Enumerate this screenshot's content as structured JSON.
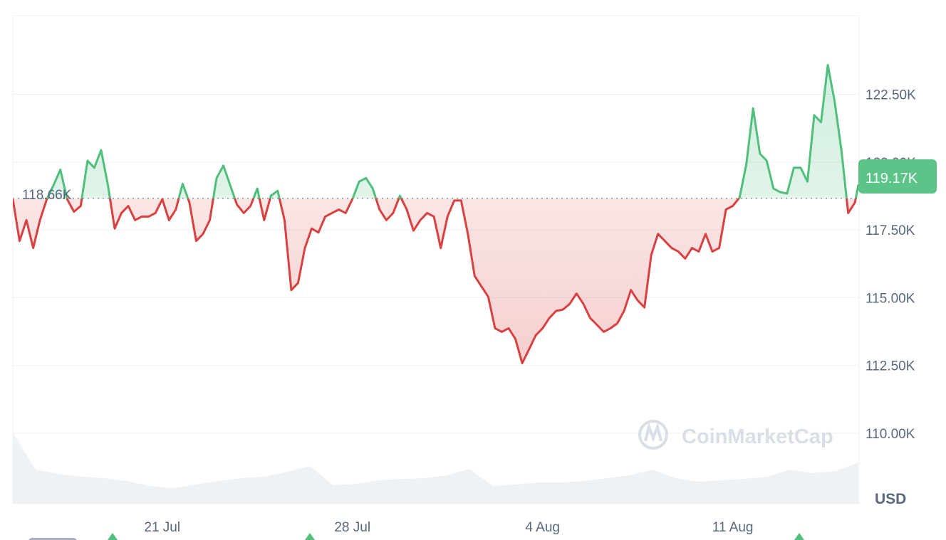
{
  "chart_data": {
    "type": "area",
    "currency_label": "USD",
    "watermark": "CoinMarketCap",
    "baseline": {
      "value": 118.66,
      "label": "118.66K"
    },
    "current": {
      "value": 119.17,
      "label": "119.17K"
    },
    "y_ticks": [
      {
        "v": 110,
        "label": "110.00K"
      },
      {
        "v": 112.5,
        "label": "112.50K"
      },
      {
        "v": 115,
        "label": "115.00K"
      },
      {
        "v": 117.5,
        "label": "117.50K"
      },
      {
        "v": 120,
        "label": "120.00K"
      },
      {
        "v": 122.5,
        "label": "122.50K"
      }
    ],
    "x_ticks": [
      {
        "t": "21 Jul 00:00",
        "label": "21 Jul"
      },
      {
        "t": "28 Jul 00:00",
        "label": "28 Jul"
      },
      {
        "t": "4 Aug 00:00",
        "label": "4 Aug"
      },
      {
        "t": "11 Aug 00:00",
        "label": "11 Aug"
      }
    ],
    "x_range": [
      "15 Jul 12:00",
      "15 Aug 15:00"
    ],
    "ylim": [
      107.4,
      125.4
    ],
    "grid": true,
    "colors": {
      "up": "#4fbf7b",
      "down": "#d94040",
      "up_fill": "#5cc489",
      "grid": "#eef0f3",
      "text": "#58667e",
      "volume": "#eff2f5",
      "badge": "#5cc489"
    },
    "price": [
      [
        "15 Jul 12:00",
        118.63
      ],
      [
        "15 Jul 18:00",
        117.09
      ],
      [
        "16 Jul 00:00",
        117.86
      ],
      [
        "16 Jul 06:00",
        116.83
      ],
      [
        "16 Jul 12:00",
        117.86
      ],
      [
        "16 Jul 18:00",
        118.63
      ],
      [
        "17 Jul 00:00",
        119.15
      ],
      [
        "17 Jul 06:00",
        119.72
      ],
      [
        "17 Jul 12:00",
        118.63
      ],
      [
        "17 Jul 18:00",
        118.17
      ],
      [
        "18 Jul 00:00",
        118.38
      ],
      [
        "18 Jul 06:00",
        120.05
      ],
      [
        "18 Jul 12:00",
        119.79
      ],
      [
        "18 Jul 18:00",
        120.44
      ],
      [
        "19 Jul 00:00",
        119.15
      ],
      [
        "19 Jul 06:00",
        117.55
      ],
      [
        "19 Jul 12:00",
        118.12
      ],
      [
        "19 Jul 18:00",
        118.38
      ],
      [
        "20 Jul 00:00",
        117.86
      ],
      [
        "20 Jul 06:00",
        117.99
      ],
      [
        "20 Jul 12:00",
        117.99
      ],
      [
        "20 Jul 18:00",
        118.12
      ],
      [
        "21 Jul 00:00",
        118.63
      ],
      [
        "21 Jul 06:00",
        117.86
      ],
      [
        "21 Jul 12:00",
        118.25
      ],
      [
        "21 Jul 18:00",
        119.2
      ],
      [
        "22 Jul 00:00",
        118.51
      ],
      [
        "22 Jul 06:00",
        117.09
      ],
      [
        "22 Jul 12:00",
        117.35
      ],
      [
        "22 Jul 18:00",
        117.86
      ],
      [
        "23 Jul 00:00",
        119.41
      ],
      [
        "23 Jul 06:00",
        119.87
      ],
      [
        "23 Jul 12:00",
        119.15
      ],
      [
        "23 Jul 18:00",
        118.43
      ],
      [
        "24 Jul 00:00",
        118.12
      ],
      [
        "24 Jul 06:00",
        118.38
      ],
      [
        "24 Jul 12:00",
        119.02
      ],
      [
        "24 Jul 18:00",
        117.86
      ],
      [
        "25 Jul 00:00",
        118.76
      ],
      [
        "25 Jul 06:00",
        118.94
      ],
      [
        "25 Jul 12:00",
        117.86
      ],
      [
        "25 Jul 18:00",
        115.28
      ],
      [
        "26 Jul 00:00",
        115.54
      ],
      [
        "26 Jul 06:00",
        116.83
      ],
      [
        "26 Jul 12:00",
        117.55
      ],
      [
        "26 Jul 18:00",
        117.4
      ],
      [
        "27 Jul 00:00",
        117.99
      ],
      [
        "27 Jul 06:00",
        118.12
      ],
      [
        "27 Jul 12:00",
        118.25
      ],
      [
        "27 Jul 18:00",
        118.12
      ],
      [
        "28 Jul 00:00",
        118.63
      ],
      [
        "28 Jul 06:00",
        119.28
      ],
      [
        "28 Jul 12:00",
        119.41
      ],
      [
        "28 Jul 18:00",
        119.02
      ],
      [
        "29 Jul 00:00",
        118.25
      ],
      [
        "29 Jul 06:00",
        117.86
      ],
      [
        "29 Jul 12:00",
        118.12
      ],
      [
        "29 Jul 18:00",
        118.76
      ],
      [
        "30 Jul 00:00",
        118.25
      ],
      [
        "30 Jul 06:00",
        117.47
      ],
      [
        "30 Jul 12:00",
        117.86
      ],
      [
        "30 Jul 18:00",
        118.12
      ],
      [
        "31 Jul 00:00",
        117.99
      ],
      [
        "31 Jul 06:00",
        116.83
      ],
      [
        "31 Jul 12:00",
        117.99
      ],
      [
        "31 Jul 18:00",
        118.58
      ],
      [
        "1 Aug 00:00",
        118.58
      ],
      [
        "1 Aug 06:00",
        117.35
      ],
      [
        "1 Aug 12:00",
        115.8
      ],
      [
        "1 Aug 18:00",
        115.41
      ],
      [
        "2 Aug 00:00",
        115.03
      ],
      [
        "2 Aug 06:00",
        113.87
      ],
      [
        "2 Aug 12:00",
        113.74
      ],
      [
        "2 Aug 18:00",
        113.87
      ],
      [
        "3 Aug 00:00",
        113.48
      ],
      [
        "3 Aug 06:00",
        112.58
      ],
      [
        "3 Aug 12:00",
        113.09
      ],
      [
        "3 Aug 18:00",
        113.61
      ],
      [
        "4 Aug 00:00",
        113.87
      ],
      [
        "4 Aug 06:00",
        114.25
      ],
      [
        "4 Aug 12:00",
        114.51
      ],
      [
        "4 Aug 18:00",
        114.56
      ],
      [
        "5 Aug 00:00",
        114.77
      ],
      [
        "5 Aug 06:00",
        115.15
      ],
      [
        "5 Aug 12:00",
        114.77
      ],
      [
        "5 Aug 18:00",
        114.25
      ],
      [
        "6 Aug 00:00",
        114.0
      ],
      [
        "6 Aug 06:00",
        113.74
      ],
      [
        "6 Aug 12:00",
        113.87
      ],
      [
        "6 Aug 18:00",
        114.05
      ],
      [
        "7 Aug 00:00",
        114.51
      ],
      [
        "7 Aug 06:00",
        115.28
      ],
      [
        "7 Aug 12:00",
        114.9
      ],
      [
        "7 Aug 18:00",
        114.64
      ],
      [
        "8 Aug 00:00",
        116.57
      ],
      [
        "8 Aug 06:00",
        117.35
      ],
      [
        "8 Aug 12:00",
        117.09
      ],
      [
        "8 Aug 18:00",
        116.83
      ],
      [
        "9 Aug 00:00",
        116.7
      ],
      [
        "9 Aug 06:00",
        116.44
      ],
      [
        "9 Aug 12:00",
        116.83
      ],
      [
        "9 Aug 18:00",
        116.7
      ],
      [
        "10 Aug 00:00",
        117.35
      ],
      [
        "10 Aug 06:00",
        116.7
      ],
      [
        "10 Aug 12:00",
        116.83
      ],
      [
        "10 Aug 18:00",
        118.25
      ],
      [
        "11 Aug 00:00",
        118.38
      ],
      [
        "11 Aug 06:00",
        118.69
      ],
      [
        "11 Aug 12:00",
        119.92
      ],
      [
        "11 Aug 18:00",
        121.98
      ],
      [
        "12 Aug 00:00",
        120.31
      ],
      [
        "12 Aug 06:00",
        120.05
      ],
      [
        "12 Aug 12:00",
        119.02
      ],
      [
        "12 Aug 18:00",
        118.89
      ],
      [
        "13 Aug 00:00",
        118.84
      ],
      [
        "13 Aug 06:00",
        119.79
      ],
      [
        "13 Aug 12:00",
        119.79
      ],
      [
        "13 Aug 18:00",
        119.28
      ],
      [
        "14 Aug 00:00",
        121.73
      ],
      [
        "14 Aug 06:00",
        121.47
      ],
      [
        "14 Aug 12:00",
        123.58
      ],
      [
        "14 Aug 18:00",
        122.24
      ],
      [
        "15 Aug 00:00",
        120.44
      ],
      [
        "15 Aug 06:00",
        118.12
      ],
      [
        "15 Aug 12:00",
        118.51
      ],
      [
        "15 Aug 15:00",
        119.17
      ]
    ],
    "volume_relative": [
      1.0,
      0.48,
      0.42,
      0.38,
      0.36,
      0.32,
      0.25,
      0.22,
      0.27,
      0.32,
      0.36,
      0.38,
      0.45,
      0.53,
      0.26,
      0.28,
      0.33,
      0.35,
      0.36,
      0.4,
      0.49,
      0.25,
      0.27,
      0.3,
      0.3,
      0.32,
      0.36,
      0.4,
      0.48,
      0.36,
      0.31,
      0.33,
      0.35,
      0.38,
      0.48,
      0.43,
      0.46,
      0.58
    ]
  }
}
